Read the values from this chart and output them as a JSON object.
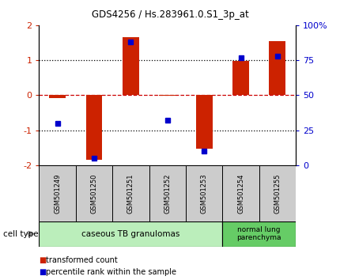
{
  "title": "GDS4256 / Hs.283961.0.S1_3p_at",
  "samples": [
    "GSM501249",
    "GSM501250",
    "GSM501251",
    "GSM501252",
    "GSM501253",
    "GSM501254",
    "GSM501255"
  ],
  "transformed_count": [
    -0.08,
    -1.85,
    1.65,
    -0.02,
    -1.52,
    0.98,
    1.55
  ],
  "percentile_rank": [
    30,
    5,
    88,
    32,
    10,
    77,
    78
  ],
  "ylim_left": [
    -2,
    2
  ],
  "ylim_right": [
    0,
    100
  ],
  "yticks_left": [
    -2,
    -1,
    0,
    1,
    2
  ],
  "yticks_right": [
    0,
    25,
    50,
    75,
    100
  ],
  "ytick_labels_right": [
    "0",
    "25",
    "50",
    "75",
    "100%"
  ],
  "bar_color": "#cc2200",
  "dot_color": "#0000cc",
  "zero_line_color": "#cc0000",
  "dotted_color": "#000000",
  "cell_type_color_1": "#bbeebb",
  "cell_type_color_2": "#66cc66",
  "cell_type_label_1": "caseous TB granulomas",
  "cell_type_label_2": "normal lung\nparenchyma",
  "sample_box_color": "#cccccc",
  "legend_bar_label": "transformed count",
  "legend_dot_label": "percentile rank within the sample",
  "cell_type_label": "cell type",
  "background_color": "#ffffff",
  "tick_label_color_left": "#cc2200",
  "tick_label_color_right": "#0000cc",
  "bar_width": 0.45
}
